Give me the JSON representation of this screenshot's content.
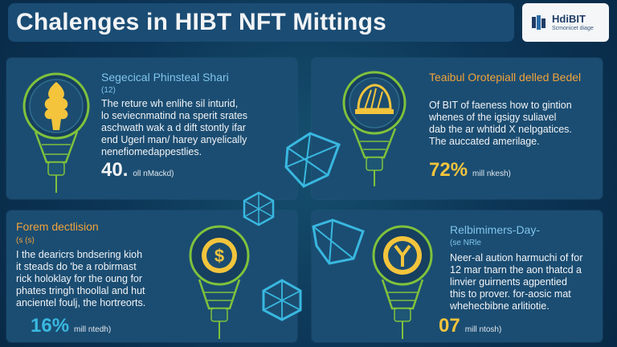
{
  "header": {
    "title": "Chalenges in HIBT NFT Mittings"
  },
  "logo": {
    "name": "HdiBIT",
    "sub": "Scmonicet diage"
  },
  "cards": [
    {
      "title": "Segecical Phinsteal Shari",
      "subtitle": "(12)",
      "body": [
        "The reture wh enlihe sil inturid,",
        "lo seviecnmatind na sperit srates",
        "aschwath wak a d dift stontly ifar",
        "end Ugerl man/ harey anyelically",
        "nenefiomedappestlies."
      ],
      "stat_value": "40.",
      "stat_label": "oll nMackd)"
    },
    {
      "title": "Teaibul Orotepiall delled Bedel",
      "subtitle": "",
      "body": [
        "Of BIT of faeness how to gintion",
        "whenes of the igsigy suliavel",
        "dab the ar whtidd X nelpgatices.",
        "The auccated amerilage."
      ],
      "stat_value": "72%",
      "stat_label": "mill nkesh)"
    },
    {
      "title": "Forem dectlision",
      "subtitle": "(s (s)",
      "body": [
        "I the dearicrs bndsering kioh",
        "it steads do 'be a robirmast",
        "rick holoklay for the oung for",
        "phates tringh thoollal and hut",
        "ancientel foulj, the hortreorts."
      ],
      "stat_value": "16%",
      "stat_label": "mill ntedh)"
    },
    {
      "title": "Relbimimers-Day-",
      "subtitle": "(se NRle",
      "body": [
        "Neer-al aution harmuchi of for",
        "12 mar tnarn the aon thatcd a",
        "linvier guirnents agpentied",
        "this to prover. for-aosic mat",
        "whehecbibne arlitiotie."
      ],
      "stat_value": "07",
      "stat_label": "mill ntosh)"
    }
  ],
  "colors": {
    "background": "#0c3556",
    "card": "#1b4d72",
    "title_bar": "#1a4c74",
    "accent_yellow": "#f3c43c",
    "accent_cyan": "#39b8e0",
    "bulb_green": "#7fc23c",
    "subtitle_blue": "#7fc4ec",
    "subtitle_orange": "#f1a23a"
  },
  "icons": [
    "tree-icon",
    "pinecone-icon",
    "dollar-coin-icon",
    "yen-coin-icon",
    "crystal-icon"
  ]
}
